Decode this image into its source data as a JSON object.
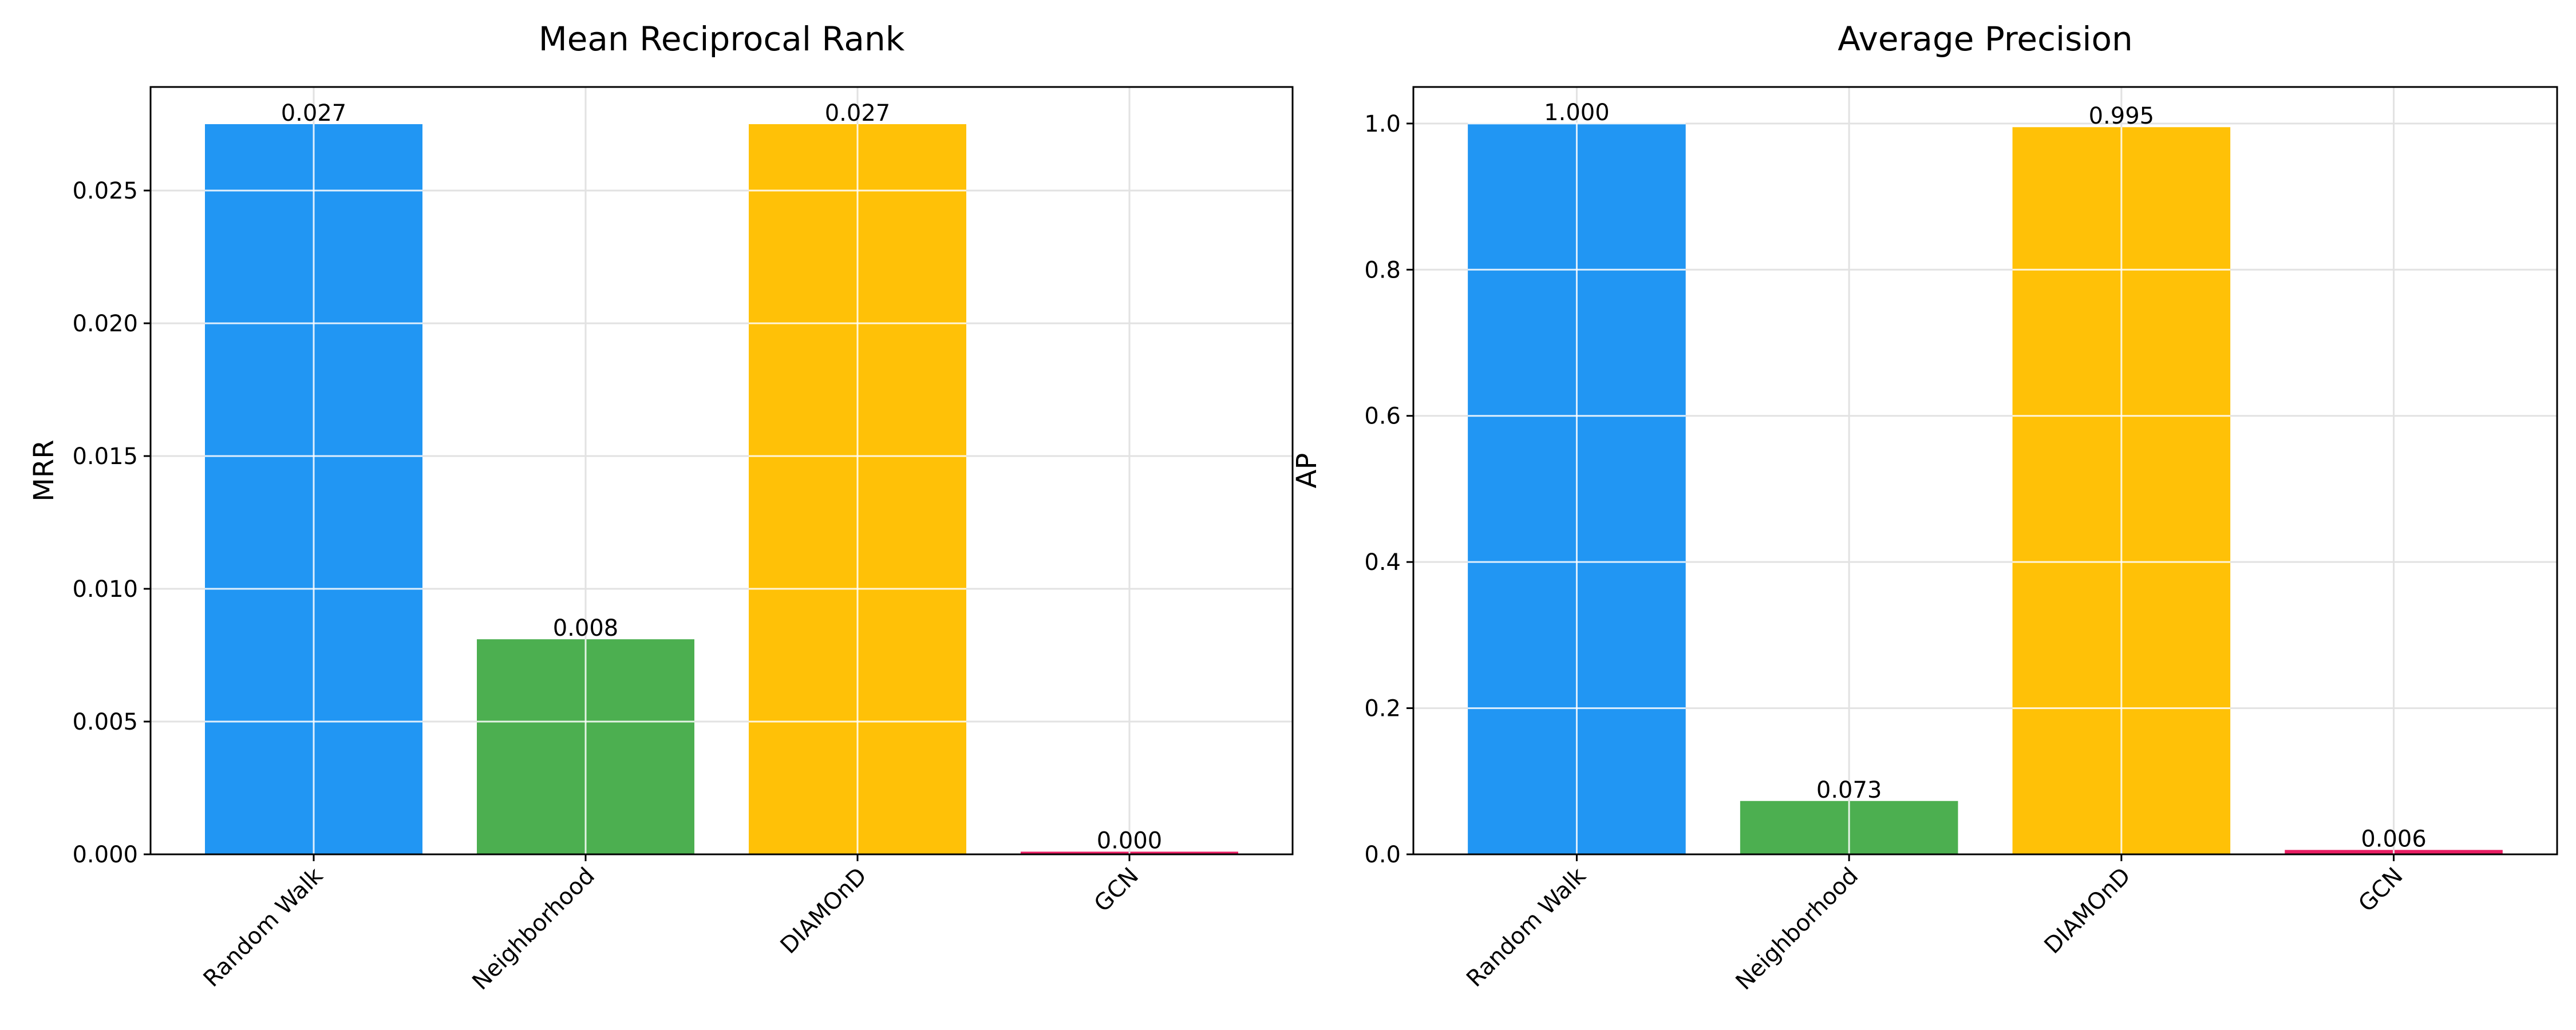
{
  "chart_data": [
    {
      "type": "bar",
      "title": "Mean Reciprocal Rank",
      "xlabel": "",
      "ylabel": "MRR",
      "categories": [
        "Random Walk",
        "Neighborhood",
        "DIAMOnD",
        "GCN"
      ],
      "values": [
        0.0275,
        0.0081,
        0.0275,
        0.0001
      ],
      "value_labels": [
        "0.027",
        "0.008",
        "0.027",
        "0.000"
      ],
      "colors": [
        "#2196F3",
        "#4CAF50",
        "#FFC107",
        "#E91E63"
      ],
      "ylim": [
        0,
        0.0289
      ],
      "yticks": [
        0.0,
        0.005,
        0.01,
        0.015,
        0.02,
        0.025
      ],
      "ytick_labels": [
        "0.000",
        "0.005",
        "0.010",
        "0.015",
        "0.020",
        "0.025"
      ],
      "grid": true,
      "xtick_rotation": 45
    },
    {
      "type": "bar",
      "title": "Average Precision",
      "xlabel": "",
      "ylabel": "AP",
      "categories": [
        "Random Walk",
        "Neighborhood",
        "DIAMOnD",
        "GCN"
      ],
      "values": [
        1.0,
        0.073,
        0.995,
        0.006
      ],
      "value_labels": [
        "1.000",
        "0.073",
        "0.995",
        "0.006"
      ],
      "colors": [
        "#2196F3",
        "#4CAF50",
        "#FFC107",
        "#E91E63"
      ],
      "ylim": [
        0,
        1.05
      ],
      "yticks": [
        0.0,
        0.2,
        0.4,
        0.6,
        0.8,
        1.0
      ],
      "ytick_labels": [
        "0.0",
        "0.2",
        "0.4",
        "0.6",
        "0.8",
        "1.0"
      ],
      "grid": true,
      "xtick_rotation": 45
    }
  ]
}
